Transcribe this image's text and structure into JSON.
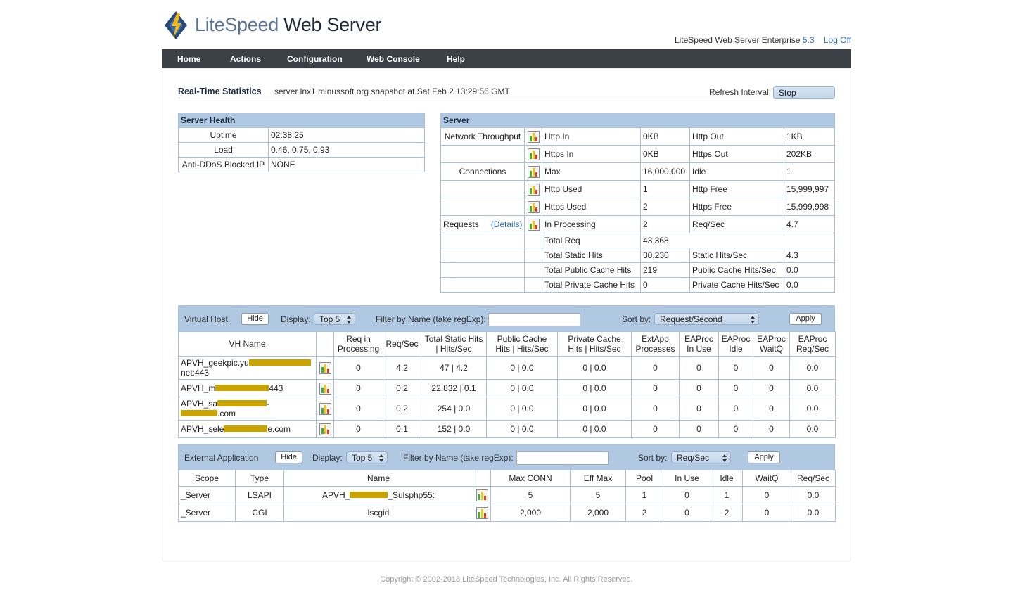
{
  "header": {
    "brand_light": "LiteSpeed",
    "brand_dark": "Web Server",
    "product": "LiteSpeed Web Server Enterprise",
    "version": "5.3",
    "logoff": "Log Off"
  },
  "nav": [
    "Home",
    "Actions",
    "Configuration",
    "Web Console",
    "Help"
  ],
  "page": {
    "title": "Real-Time Statistics",
    "snapshot": "server lnx1.minussoft.org snapshot at Sat Feb 2 13:29:56 GMT",
    "refresh_label": "Refresh Interval:",
    "refresh_value": "Stop"
  },
  "server_health": {
    "title": "Server Health",
    "rows": [
      [
        "Uptime",
        "02:38:25"
      ],
      [
        "Load",
        "0.46, 0.75, 0.93"
      ],
      [
        "Anti-DDoS Blocked IP",
        "NONE"
      ]
    ]
  },
  "server": {
    "title": "Server",
    "rows": [
      {
        "label": "Network Throughput",
        "icon": true,
        "cells": [
          "Http In",
          "0KB",
          "Http Out",
          "1KB"
        ]
      },
      {
        "icon": true,
        "cells": [
          "Https In",
          "0KB",
          "Https Out",
          "202KB"
        ]
      },
      {
        "label": "Connections",
        "icon": true,
        "cells": [
          "Max",
          "16,000,000",
          "Idle",
          "1"
        ]
      },
      {
        "icon": true,
        "cells": [
          "Http Used",
          "1",
          "Http Free",
          "15,999,997"
        ]
      },
      {
        "icon": true,
        "cells": [
          "Https Used",
          "2",
          "Https Free",
          "15,999,998"
        ]
      },
      {
        "label": "Requests",
        "details": "(Details)",
        "icon": true,
        "cells": [
          "In Processing",
          "2",
          "Req/Sec",
          "4.7"
        ]
      },
      {
        "icon": false,
        "cells": [
          "Total Req",
          "43,368"
        ]
      },
      {
        "icon": false,
        "cells": [
          "Total Static Hits",
          "30,230",
          "Static Hits/Sec",
          "4.3"
        ]
      },
      {
        "icon": false,
        "cells": [
          "Total Public Cache Hits",
          "219",
          "Public Cache Hits/Sec",
          "0.0"
        ]
      },
      {
        "icon": false,
        "cells": [
          "Total Private Cache Hits",
          "0",
          "Private Cache Hits/Sec",
          "0.0"
        ]
      }
    ]
  },
  "virtual_host": {
    "title": "Virtual Host",
    "hide": "Hide",
    "display_label": "Display:",
    "display_value": "Top 5",
    "filter_label": "Filter by Name (take regExp):",
    "sort_label": "Sort by:",
    "sort_value": "Request/Second",
    "apply": "Apply",
    "headers": [
      "VH Name",
      "Req in Processing",
      "Req/Sec",
      "Total Static Hits | Hits/Sec",
      "Public Cache Hits | Hits/Sec",
      "Private Cache Hits | Hits/Sec",
      "ExtApp Processes",
      "EAProc In Use",
      "EAProc Idle",
      "EAProc WaitQ",
      "EAProc Req/Sec"
    ],
    "rows": [
      {
        "name": [
          "APVH_geekpic.yu",
          "net:443"
        ],
        "cells": [
          "0",
          "4.2",
          "47 | 4.2",
          "0 | 0.0",
          "0 | 0.0",
          "0",
          "0",
          "0",
          "0",
          "0.0"
        ]
      },
      {
        "name": [
          "APVH_m",
          "443"
        ],
        "cells": [
          "0",
          "0.2",
          "22,832 | 0.1",
          "0 | 0.0",
          "0 | 0.0",
          "0",
          "0",
          "0",
          "0",
          "0.0"
        ]
      },
      {
        "name": [
          "APVH_sa",
          "-",
          ".com"
        ],
        "cells": [
          "0",
          "0.2",
          "254 | 0.0",
          "0 | 0.0",
          "0 | 0.0",
          "0",
          "0",
          "0",
          "0",
          "0.0"
        ]
      },
      {
        "name": [
          "APVH_sele",
          "e.com"
        ],
        "cells": [
          "0",
          "0.1",
          "152 | 0.0",
          "0 | 0.0",
          "0 | 0.0",
          "0",
          "0",
          "0",
          "0",
          "0.0"
        ]
      }
    ]
  },
  "external_app": {
    "title": "External Application",
    "hide": "Hide",
    "display_label": "Display:",
    "display_value": "Top 5",
    "filter_label": "Filter by Name (take regExp):",
    "sort_label": "Sort by:",
    "sort_value": "Req/Sec",
    "apply": "Apply",
    "headers": [
      "Scope",
      "Type",
      "Name",
      "Max CONN",
      "Eff Max",
      "Pool",
      "In Use",
      "Idle",
      "WaitQ",
      "Req/Sec"
    ],
    "rows": [
      {
        "scope": "_Server",
        "type": "LSAPI",
        "name": [
          "APVH_",
          "_Sulsphp55:"
        ],
        "cells": [
          "5",
          "5",
          "1",
          "0",
          "1",
          "0",
          "0.0"
        ]
      },
      {
        "scope": "_Server",
        "type": "CGI",
        "name": [
          "lscgid"
        ],
        "cells": [
          "2,000",
          "2,000",
          "2",
          "0",
          "2",
          "0",
          "0.0"
        ]
      }
    ]
  },
  "footer": "Copyright © 2002-2018 LiteSpeed Technologies, Inc. All Rights Reserved."
}
